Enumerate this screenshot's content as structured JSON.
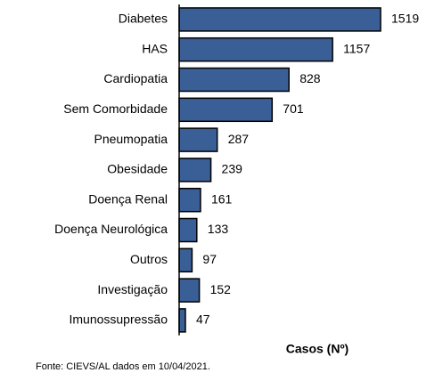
{
  "chart_data": {
    "type": "bar",
    "orientation": "horizontal",
    "categories": [
      "Diabetes",
      "HAS",
      "Cardiopatia",
      "Sem Comorbidade",
      "Pneumopatia",
      "Obesidade",
      "Doença Renal",
      "Doença Neurológica",
      "Outros",
      "Investigação",
      "Imunossupressão"
    ],
    "values": [
      1519,
      1157,
      828,
      701,
      287,
      239,
      161,
      133,
      97,
      152,
      47
    ],
    "color": "#3a5f96",
    "x_label": "Casos (Nº)",
    "source": "Fonte: CIEVS/AL dados em 10/04/2021."
  }
}
